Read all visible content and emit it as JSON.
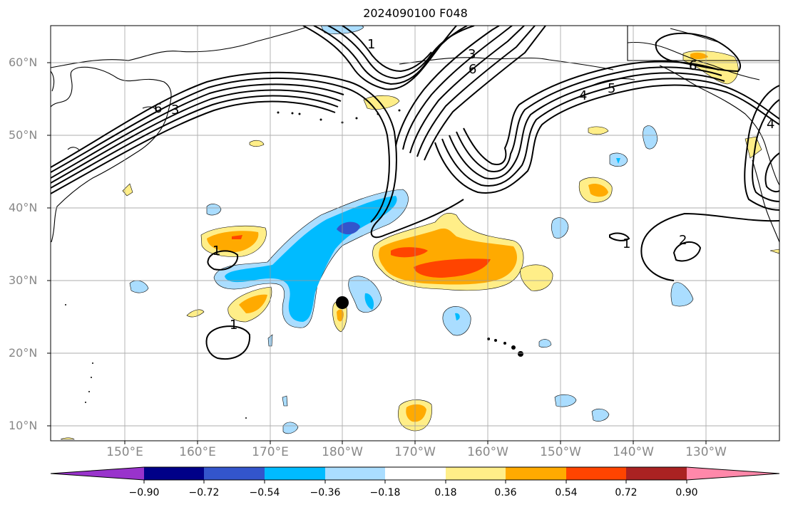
{
  "title": "2024090100 F048",
  "lat_labels": [
    "60°N",
    "50°N",
    "40°N",
    "30°N",
    "20°N",
    "10°N"
  ],
  "lon_labels": [
    "150°E",
    "160°E",
    "170°E",
    "180°W",
    "170°W",
    "160°W",
    "150°W",
    "140°W",
    "130°W"
  ],
  "colorbar": {
    "tick_labels": [
      "−0.90",
      "−0.72",
      "−0.54",
      "−0.36",
      "−0.18",
      "0.18",
      "0.36",
      "0.54",
      "0.72",
      "0.90"
    ],
    "colors": [
      "#9933cc",
      "#000088",
      "#3355cc",
      "#00bbff",
      "#aaddff",
      "#ffffff",
      "#ffee88",
      "#ffaa00",
      "#ff4400",
      "#aa2222",
      "#ff88aa"
    ]
  },
  "contour_labels": [
    "1",
    "2",
    "3",
    "4",
    "5",
    "6"
  ],
  "marker": {
    "name": "storm-center",
    "lon": 180,
    "lat": 27
  },
  "grid": true
}
